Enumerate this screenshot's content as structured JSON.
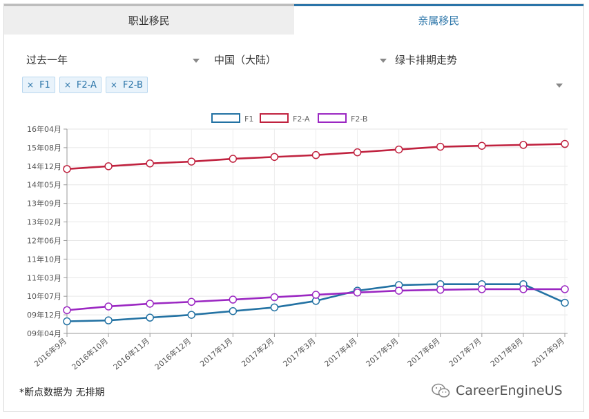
{
  "tabs": [
    {
      "label": "职业移民",
      "active": false
    },
    {
      "label": "亲属移民",
      "active": true
    }
  ],
  "filters": {
    "period": "过去一年",
    "country": "中国（大陆）",
    "metric": "绿卡排期走势"
  },
  "chips": [
    {
      "remove": "×",
      "label": "F1"
    },
    {
      "remove": "×",
      "label": "F2-A"
    },
    {
      "remove": "×",
      "label": "F2-B"
    }
  ],
  "chart_data": {
    "type": "line",
    "categories": [
      "2016年9月",
      "2016年10月",
      "2016年11月",
      "2016年12月",
      "2017年1月",
      "2017年2月",
      "2017年3月",
      "2017年4月",
      "2017年5月",
      "2017年6月",
      "2017年7月",
      "2017年8月",
      "2017年9月"
    ],
    "ytick_labels": [
      "09年04月",
      "09年12月",
      "10年07月",
      "11年03月",
      "11年10月",
      "12年06月",
      "13年02月",
      "13年09月",
      "14年05月",
      "14年12月",
      "15年08月",
      "16年04月"
    ],
    "ylim_index": [
      0,
      11
    ],
    "series": [
      {
        "name": "F1",
        "color": "#2372a3",
        "values": [
          0.65,
          0.7,
          0.85,
          1.0,
          1.2,
          1.4,
          1.75,
          2.3,
          2.6,
          2.65,
          2.65,
          2.65,
          1.65
        ]
      },
      {
        "name": "F2-A",
        "color": "#c0223f",
        "values": [
          8.85,
          9.0,
          9.15,
          9.25,
          9.4,
          9.5,
          9.6,
          9.75,
          9.9,
          10.05,
          10.1,
          10.15,
          10.2
        ]
      },
      {
        "name": "F2-B",
        "color": "#9b27c2",
        "values": [
          1.25,
          1.45,
          1.6,
          1.7,
          1.82,
          1.95,
          2.08,
          2.2,
          2.3,
          2.35,
          2.38,
          2.38,
          2.38
        ]
      }
    ],
    "grid": true,
    "legend": "top-center"
  },
  "footer": {
    "note": "*断点数据为 无排期",
    "brand": "CareerEngineUS"
  },
  "icons": {
    "dropdown": "caret-down-icon",
    "brand": "wechat-icon"
  }
}
